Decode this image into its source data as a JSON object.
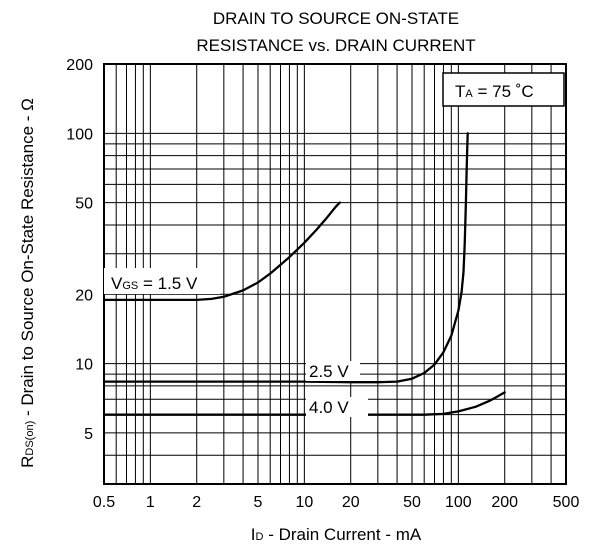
{
  "chart_data": {
    "type": "line",
    "title": [
      "DRAIN TO SOURCE ON-STATE",
      "RESISTANCE vs. DRAIN CURRENT"
    ],
    "xlabel": {
      "main": "I",
      "sub": "D",
      "rest": " - Drain Current - mA"
    },
    "ylabel": {
      "main": "R",
      "sub": "DS(on)",
      "rest": " - Drain to Source On-State Resistance - Ω"
    },
    "xscale": "log",
    "yscale": "log",
    "xlim": [
      0.5,
      500
    ],
    "ylim": [
      3,
      200
    ],
    "xticks": [
      0.5,
      1,
      2,
      5,
      10,
      20,
      50,
      100,
      200,
      500
    ],
    "xtick_labels": [
      "0.5",
      "1",
      "2",
      "5",
      "10",
      "20",
      "50",
      "100",
      "200",
      "500"
    ],
    "yticks": [
      5,
      10,
      20,
      50,
      100,
      200
    ],
    "ytick_labels": [
      "5",
      "10",
      "20",
      "50",
      "100",
      "200"
    ],
    "grid": true,
    "condition": {
      "main": "T",
      "sub": "A",
      "rest": " = 75 ˚C"
    },
    "series": [
      {
        "name_main": "V",
        "name_sub": "GS",
        "name_rest": " = 1.5 V",
        "x": [
          0.5,
          1,
          2,
          2.5,
          3,
          4,
          5,
          6,
          8,
          10,
          12,
          14,
          16,
          17
        ],
        "y": [
          18.9,
          18.9,
          18.9,
          19.1,
          19.5,
          20.8,
          22.5,
          24.6,
          29.0,
          33.5,
          38.2,
          43.0,
          48.0,
          50.0
        ]
      },
      {
        "name": "2.5 V",
        "x": [
          0.5,
          2,
          10,
          20,
          30,
          40,
          50,
          60,
          70,
          80,
          90,
          100,
          105,
          108,
          110,
          112,
          113,
          114,
          115
        ],
        "y": [
          8.35,
          8.35,
          8.35,
          8.3,
          8.3,
          8.35,
          8.6,
          9.1,
          9.9,
          11.2,
          13.2,
          17.0,
          20.5,
          25.0,
          33.0,
          50.0,
          65.0,
          82.0,
          100.0
        ]
      },
      {
        "name": "4.0 V",
        "x": [
          0.5,
          2,
          10,
          30,
          60,
          80,
          100,
          130,
          160,
          200
        ],
        "y": [
          6.0,
          6.0,
          6.0,
          6.0,
          6.0,
          6.05,
          6.2,
          6.5,
          6.9,
          7.5
        ]
      }
    ]
  }
}
